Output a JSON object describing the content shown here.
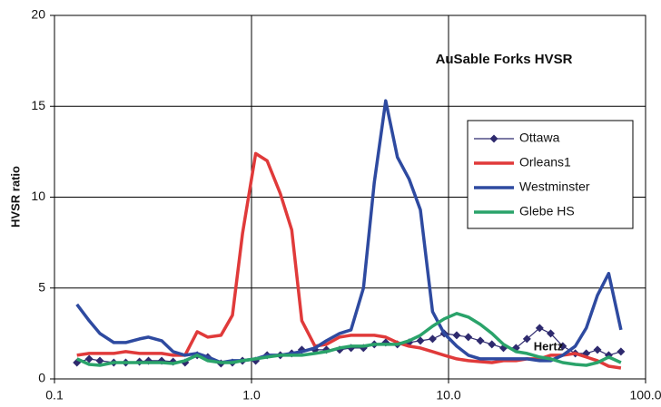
{
  "chart_data": {
    "type": "line",
    "title": "AuSable Forks HVSR",
    "x_label": "Hertz",
    "y_label": "HVSR ratio",
    "x": [
      0.13,
      0.15,
      0.17,
      0.2,
      0.23,
      0.27,
      0.3,
      0.35,
      0.4,
      0.46,
      0.53,
      0.6,
      0.7,
      0.8,
      0.9,
      1.05,
      1.2,
      1.4,
      1.6,
      1.8,
      2.1,
      2.4,
      2.8,
      3.2,
      3.7,
      4.2,
      4.8,
      5.5,
      6.3,
      7.2,
      8.3,
      9.5,
      11,
      12.6,
      14.5,
      16.6,
      19,
      22,
      25,
      29,
      33,
      38,
      44,
      50,
      57,
      65,
      75
    ],
    "series": [
      {
        "name": "Ottawa",
        "color": "#2e2a6e",
        "marker": "diamond",
        "values": [
          0.9,
          1.1,
          1.0,
          0.9,
          0.9,
          0.95,
          1.0,
          1.0,
          0.95,
          0.9,
          1.3,
          1.2,
          0.85,
          0.9,
          1.0,
          1.0,
          1.3,
          1.3,
          1.4,
          1.6,
          1.6,
          1.6,
          1.6,
          1.7,
          1.7,
          1.9,
          2.0,
          1.9,
          2.0,
          2.1,
          2.2,
          2.5,
          2.4,
          2.3,
          2.1,
          1.9,
          1.7,
          1.7,
          2.2,
          2.8,
          2.5,
          1.8,
          1.4,
          1.4,
          1.6,
          1.3,
          1.5
        ]
      },
      {
        "name": "Orleans1",
        "color": "#e03a3a",
        "values": [
          1.3,
          1.4,
          1.4,
          1.4,
          1.5,
          1.4,
          1.4,
          1.4,
          1.3,
          1.3,
          2.6,
          2.3,
          2.4,
          3.5,
          8.0,
          12.4,
          12.0,
          10.2,
          8.2,
          3.2,
          1.8,
          1.9,
          2.3,
          2.4,
          2.4,
          2.4,
          2.3,
          2.0,
          1.8,
          1.7,
          1.5,
          1.3,
          1.1,
          1.0,
          0.95,
          0.9,
          1.0,
          1.0,
          1.1,
          1.1,
          1.3,
          1.3,
          1.4,
          1.2,
          1.0,
          0.7,
          0.6
        ]
      },
      {
        "name": "Westminster",
        "color": "#2e4aa0",
        "values": [
          4.1,
          3.2,
          2.5,
          2.0,
          2.0,
          2.2,
          2.3,
          2.1,
          1.5,
          1.3,
          1.4,
          1.2,
          0.9,
          1.0,
          1.0,
          1.1,
          1.3,
          1.3,
          1.4,
          1.5,
          1.7,
          2.1,
          2.5,
          2.7,
          5.0,
          10.8,
          15.3,
          12.2,
          11.0,
          9.3,
          3.7,
          2.5,
          1.8,
          1.3,
          1.1,
          1.1,
          1.1,
          1.1,
          1.1,
          1.0,
          1.0,
          1.3,
          1.8,
          2.8,
          4.6,
          5.8,
          2.7
        ]
      },
      {
        "name": "Glebe HS",
        "color": "#2aa36a",
        "values": [
          1.1,
          0.8,
          0.75,
          0.9,
          0.9,
          0.9,
          0.9,
          0.9,
          0.85,
          1.0,
          1.3,
          1.0,
          0.9,
          0.9,
          1.0,
          1.1,
          1.2,
          1.3,
          1.3,
          1.3,
          1.4,
          1.5,
          1.7,
          1.8,
          1.8,
          1.9,
          1.9,
          1.9,
          2.1,
          2.4,
          2.9,
          3.3,
          3.6,
          3.4,
          3.0,
          2.5,
          1.9,
          1.5,
          1.4,
          1.2,
          1.1,
          0.9,
          0.8,
          0.75,
          0.9,
          1.2,
          0.9
        ]
      }
    ],
    "xlim": [
      0.1,
      100
    ],
    "xlog": true,
    "xticks": [
      0.1,
      {
        "value": 1,
        "label": "1.0"
      },
      {
        "value": 10,
        "label": "10.0"
      },
      {
        "value": 100,
        "label": "100.0"
      }
    ],
    "ylim": [
      0,
      20
    ],
    "yticks": [
      0,
      5,
      10,
      15,
      20
    ],
    "grid": true,
    "legend": "right"
  }
}
